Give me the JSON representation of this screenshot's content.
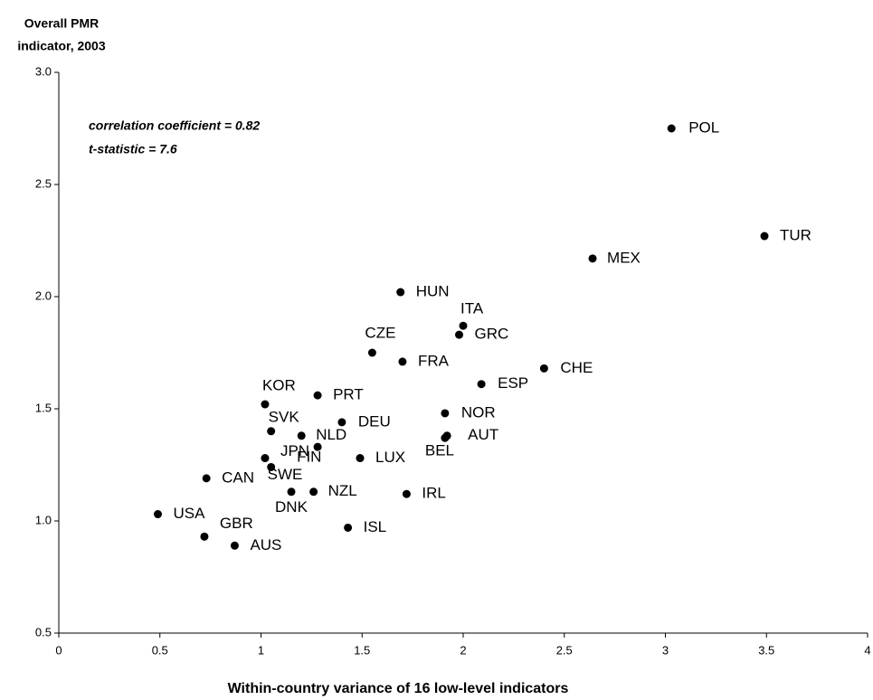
{
  "chart_data": {
    "type": "scatter",
    "ylabel": [
      "Overall PMR",
      "indicator, 2003"
    ],
    "xlabel": "Within-country variance of 16 low-level indicators",
    "annotations": [
      "correlation coefficient = 0.82",
      "t-statistic = 7.6"
    ],
    "labels": [
      "POL",
      "TUR",
      "MEX",
      "HUN",
      "ITA",
      "GRC",
      "CZE",
      "FRA",
      "CHE",
      "ESP",
      "KOR",
      "PRT",
      "NOR",
      "DEU",
      "SVK",
      "NLD",
      "AUT",
      "BEL",
      "FIN",
      "LUX",
      "JPN",
      "SWE",
      "CAN",
      "DNK",
      "NZL",
      "IRL",
      "USA",
      "GBR",
      "ISL",
      "AUS"
    ],
    "x": [
      3.03,
      3.49,
      2.64,
      1.69,
      2.0,
      1.98,
      1.55,
      1.7,
      2.4,
      2.09,
      1.02,
      1.28,
      1.91,
      1.4,
      1.05,
      1.2,
      1.92,
      1.91,
      1.28,
      1.49,
      1.02,
      1.05,
      0.73,
      1.15,
      1.26,
      1.72,
      0.49,
      0.72,
      1.43,
      0.87
    ],
    "values": [
      2.75,
      2.27,
      2.17,
      2.02,
      1.87,
      1.83,
      1.75,
      1.71,
      1.68,
      1.61,
      1.52,
      1.56,
      1.48,
      1.44,
      1.4,
      1.38,
      1.38,
      1.37,
      1.33,
      1.28,
      1.28,
      1.24,
      1.19,
      1.13,
      1.13,
      1.12,
      1.03,
      0.93,
      0.97,
      0.89
    ],
    "color": "#000000",
    "xlim": [
      0,
      4
    ],
    "xticks": [
      0,
      0.5,
      1,
      1.5,
      2,
      2.5,
      3,
      3.5,
      4
    ],
    "ylim": [
      0.5,
      3.0
    ],
    "yticks": [
      0.5,
      {
        "value": 1.0,
        "label": "1.0"
      },
      1.5,
      {
        "value": 2.0,
        "label": "2.0"
      },
      2.5,
      {
        "value": 3.0,
        "label": "3.0"
      }
    ],
    "grid": false
  }
}
